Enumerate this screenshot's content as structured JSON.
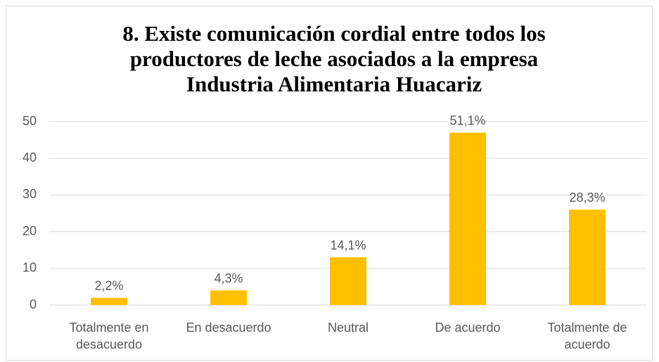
{
  "chart_data": {
    "type": "bar",
    "title": "8. Existe comunicación cordial entre todos los productores de leche asociados a la empresa Industria Alimentaria Huacariz",
    "categories": [
      "Totalmente en desacuerdo",
      "En desacuerdo",
      "Neutral",
      "De acuerdo",
      "Totalmente de acuerdo"
    ],
    "values": [
      2,
      4,
      13,
      47,
      26
    ],
    "value_labels": [
      "2,2%",
      "4,3%",
      "14,1%",
      "51,1%",
      "28,3%"
    ],
    "color": "#ffc000",
    "ylim": [
      0,
      50
    ],
    "yticks": [
      0,
      10,
      20,
      30,
      40,
      50
    ],
    "grid": true
  }
}
